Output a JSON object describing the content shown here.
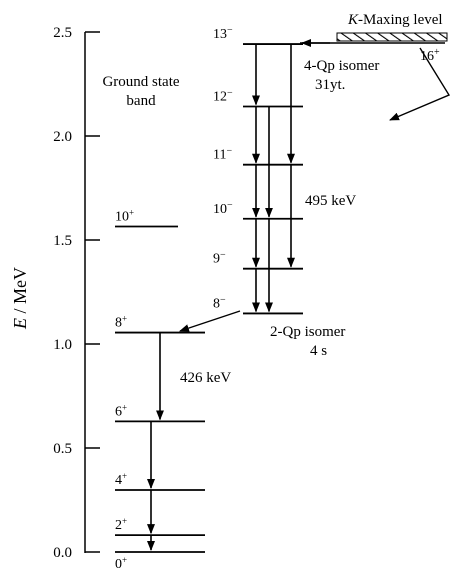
{
  "axis": {
    "title_italic": "E",
    "title_rest": " / MeV",
    "min": 0,
    "max": 2.5,
    "ticks": [
      {
        "value": 0.0,
        "label": "0.0"
      },
      {
        "value": 0.5,
        "label": "0.5"
      },
      {
        "value": 1.0,
        "label": "1.0"
      },
      {
        "value": 1.5,
        "label": "1.5"
      },
      {
        "value": 2.0,
        "label": "2.0"
      },
      {
        "value": 2.5,
        "label": "2.5"
      }
    ]
  },
  "ground_band": {
    "title_line1": "Ground state",
    "title_line2": "band",
    "levels": [
      {
        "spin": "0",
        "parity": "+",
        "energy": 0.0
      },
      {
        "spin": "2",
        "parity": "+",
        "energy": 0.081
      },
      {
        "spin": "4",
        "parity": "+",
        "energy": 0.298
      },
      {
        "spin": "6",
        "parity": "+",
        "energy": 0.628
      },
      {
        "spin": "8",
        "parity": "+",
        "energy": 1.055
      },
      {
        "spin": "10",
        "parity": "+",
        "energy": 1.565
      }
    ],
    "transition_label": "426 keV"
  },
  "k_band": {
    "levels": [
      {
        "spin": "8",
        "parity": "−",
        "energy": 1.147
      },
      {
        "spin": "9",
        "parity": "−",
        "energy": 1.362
      },
      {
        "spin": "10",
        "parity": "−",
        "energy": 1.602
      },
      {
        "spin": "11",
        "parity": "−",
        "energy": 1.862
      },
      {
        "spin": "12",
        "parity": "−",
        "energy": 2.142
      },
      {
        "spin": "13",
        "parity": "−",
        "energy": 2.442
      }
    ],
    "transition_label": "495 keV"
  },
  "isomer_2qp": {
    "name": "2-Qp isomer",
    "halflife": "4 s"
  },
  "isomer_4qp": {
    "name": "4-Qp isomer",
    "halflife": "31yt.",
    "spin": "16",
    "parity": "+",
    "energy": 2.47
  },
  "k_maxing": {
    "label_italic": "K",
    "label_rest": "-Maxing level"
  }
}
